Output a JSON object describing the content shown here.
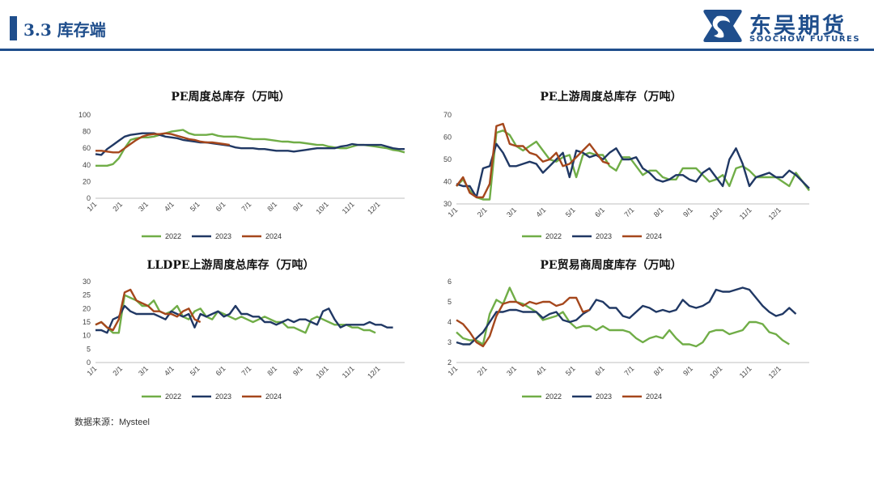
{
  "header": {
    "section_title": "3.3 库存端",
    "logo_cn": "东吴期货",
    "logo_en": "SOOCHOW FUTURES"
  },
  "source_note": "数据来源：Mysteel",
  "colors": {
    "2022": "#70ad47",
    "2023": "#203864",
    "2024": "#a5471c",
    "accent": "#1f4e8c"
  },
  "chart_data": [
    {
      "type": "line",
      "title": "PE周度总库存（万吨）",
      "xticks": [
        "1/1",
        "2/1",
        "3/1",
        "4/1",
        "5/1",
        "6/1",
        "7/1",
        "8/1",
        "9/1",
        "10/1",
        "11/1",
        "12/1"
      ],
      "yticks": [
        "0",
        "20",
        "40",
        "60",
        "80",
        "100"
      ],
      "ylim": [
        0,
        100
      ],
      "series": [
        {
          "name": "2022",
          "color": "#70ad47",
          "values": [
            39,
            39,
            39,
            41,
            48,
            60,
            70,
            72,
            73,
            73,
            74,
            76,
            78,
            80,
            81,
            82,
            78,
            76,
            76,
            76,
            77,
            75,
            74,
            74,
            74,
            73,
            72,
            71,
            71,
            71,
            70,
            69,
            68,
            68,
            67,
            67,
            66,
            65,
            64,
            64,
            62,
            61,
            60,
            60,
            62,
            64,
            64,
            63,
            62,
            61,
            60,
            58,
            57,
            55
          ]
        },
        {
          "name": "2023",
          "color": "#203864",
          "values": [
            53,
            52,
            59,
            64,
            69,
            74,
            76,
            77,
            78,
            78,
            78,
            76,
            74,
            73,
            72,
            70,
            69,
            68,
            67,
            67,
            66,
            65,
            64,
            63,
            61,
            60,
            60,
            60,
            59,
            59,
            58,
            57,
            57,
            57,
            56,
            57,
            58,
            59,
            60,
            60,
            60,
            60,
            62,
            63,
            65,
            64,
            64,
            64,
            64,
            64,
            62,
            60,
            59,
            59
          ]
        },
        {
          "name": "2024",
          "color": "#a5471c",
          "values": [
            57,
            57,
            56,
            55,
            55,
            60,
            65,
            70,
            74,
            76,
            77,
            77,
            78,
            77,
            75,
            73,
            71,
            70,
            68,
            67,
            67,
            66,
            65,
            64
          ]
        }
      ]
    },
    {
      "type": "line",
      "title": "PE上游周度总库存（万吨）",
      "xticks": [
        "1/1",
        "2/1",
        "3/1",
        "4/1",
        "5/1",
        "6/1",
        "7/1",
        "8/1",
        "9/1",
        "10/1",
        "11/1",
        "12/1"
      ],
      "yticks": [
        "30",
        "40",
        "50",
        "60",
        "70"
      ],
      "ylim": [
        30,
        70
      ],
      "series": [
        {
          "name": "2022",
          "color": "#70ad47",
          "values": [
            38,
            41,
            36,
            33,
            32,
            32,
            62,
            63,
            61,
            56,
            54,
            56,
            58,
            54,
            50,
            49,
            51,
            52,
            42,
            52,
            53,
            52,
            52,
            47,
            45,
            51,
            51,
            47,
            43,
            45,
            45,
            42,
            41,
            41,
            46,
            46,
            46,
            43,
            40,
            41,
            43,
            38,
            46,
            47,
            45,
            42,
            42,
            42,
            42,
            40,
            38,
            44,
            40,
            36
          ]
        },
        {
          "name": "2023",
          "color": "#203864",
          "values": [
            39,
            38,
            38,
            33,
            46,
            47,
            57,
            53,
            47,
            47,
            48,
            49,
            48,
            44,
            47,
            50,
            53,
            42,
            54,
            53,
            51,
            52,
            50,
            53,
            55,
            50,
            50,
            51,
            46,
            44,
            41,
            40,
            41,
            43,
            43,
            41,
            40,
            44,
            46,
            42,
            38,
            50,
            55,
            48,
            38,
            42,
            43,
            44,
            42,
            42,
            45,
            43,
            40,
            37
          ]
        },
        {
          "name": "2024",
          "color": "#a5471c",
          "values": [
            38,
            42,
            35,
            33,
            33,
            39,
            65,
            66,
            57,
            56,
            56,
            53,
            52,
            49,
            50,
            53,
            47,
            48,
            51,
            54,
            57,
            53,
            49,
            48
          ]
        }
      ]
    },
    {
      "type": "line",
      "title": "LLDPE上游周度总库存（万吨）",
      "xticks": [
        "1/1",
        "2/1",
        "3/1",
        "4/1",
        "5/1",
        "6/1",
        "7/1",
        "8/1",
        "9/1",
        "10/1",
        "11/1",
        "12/1"
      ],
      "yticks": [
        "0",
        "5",
        "10",
        "15",
        "20",
        "25",
        "30"
      ],
      "ylim": [
        0,
        30
      ],
      "series": [
        {
          "name": "2022",
          "color": "#70ad47",
          "values": [
            14,
            15,
            13,
            11,
            11,
            25,
            24,
            23,
            21,
            21,
            23,
            19,
            18,
            19,
            21,
            17,
            16,
            19,
            20,
            17,
            16,
            19,
            18,
            17,
            16,
            17,
            16,
            15,
            16,
            17,
            16,
            15,
            15,
            13,
            13,
            12,
            11,
            16,
            17,
            16,
            15,
            14,
            14,
            14,
            13,
            13,
            12,
            12,
            11
          ]
        },
        {
          "name": "2023",
          "color": "#203864",
          "values": [
            12,
            12,
            11,
            16,
            17,
            21,
            19,
            18,
            18,
            18,
            18,
            17,
            16,
            19,
            18,
            17,
            18,
            13,
            18,
            17,
            18,
            19,
            17,
            18,
            21,
            18,
            18,
            17,
            17,
            15,
            15,
            14,
            15,
            16,
            15,
            16,
            16,
            15,
            14,
            19,
            20,
            16,
            13,
            14,
            14,
            14,
            14,
            15,
            14,
            14,
            13,
            13
          ]
        },
        {
          "name": "2024",
          "color": "#a5471c",
          "values": [
            14,
            15,
            13,
            12,
            16,
            26,
            27,
            23,
            22,
            21,
            19,
            19,
            18,
            18,
            17,
            19,
            20,
            16,
            15
          ]
        }
      ]
    },
    {
      "type": "line",
      "title": "PE贸易商周度库存（万吨）",
      "xticks": [
        "1/1",
        "2/1",
        "3/1",
        "4/1",
        "5/1",
        "6/1",
        "7/1",
        "8/1",
        "9/1",
        "10/1",
        "11/1",
        "12/1"
      ],
      "yticks": [
        "2",
        "3",
        "4",
        "5",
        "6"
      ],
      "ylim": [
        2,
        6
      ],
      "series": [
        {
          "name": "2022",
          "color": "#70ad47",
          "values": [
            3.5,
            3.2,
            3.1,
            3.1,
            2.9,
            4.4,
            5.1,
            4.9,
            5.7,
            5.0,
            4.9,
            4.7,
            4.5,
            4.1,
            4.2,
            4.3,
            4.5,
            4.0,
            3.7,
            3.8,
            3.8,
            3.6,
            3.8,
            3.6,
            3.6,
            3.6,
            3.5,
            3.2,
            3.0,
            3.2,
            3.3,
            3.2,
            3.6,
            3.2,
            2.9,
            2.9,
            2.8,
            3.0,
            3.5,
            3.6,
            3.6,
            3.4,
            3.5,
            3.6,
            4.0,
            4.0,
            3.9,
            3.5,
            3.4,
            3.1,
            2.9
          ]
        },
        {
          "name": "2023",
          "color": "#203864",
          "values": [
            3.0,
            2.9,
            2.9,
            3.2,
            3.5,
            4.0,
            4.5,
            4.5,
            4.6,
            4.6,
            4.5,
            4.5,
            4.5,
            4.2,
            4.4,
            4.5,
            4.1,
            4.0,
            4.1,
            4.4,
            4.6,
            5.1,
            5.0,
            4.7,
            4.7,
            4.3,
            4.2,
            4.5,
            4.8,
            4.7,
            4.5,
            4.6,
            4.5,
            4.6,
            5.1,
            4.8,
            4.7,
            4.8,
            5.0,
            5.6,
            5.5,
            5.5,
            5.6,
            5.7,
            5.6,
            5.2,
            4.8,
            4.5,
            4.3,
            4.4,
            4.7,
            4.4
          ]
        },
        {
          "name": "2024",
          "color": "#a5471c",
          "values": [
            4.1,
            3.9,
            3.5,
            3.0,
            2.8,
            3.3,
            4.3,
            4.9,
            5.0,
            5.0,
            4.8,
            5.0,
            4.9,
            5.0,
            5.0,
            4.8,
            4.9,
            5.2,
            5.2,
            4.5,
            4.6
          ]
        }
      ]
    }
  ]
}
